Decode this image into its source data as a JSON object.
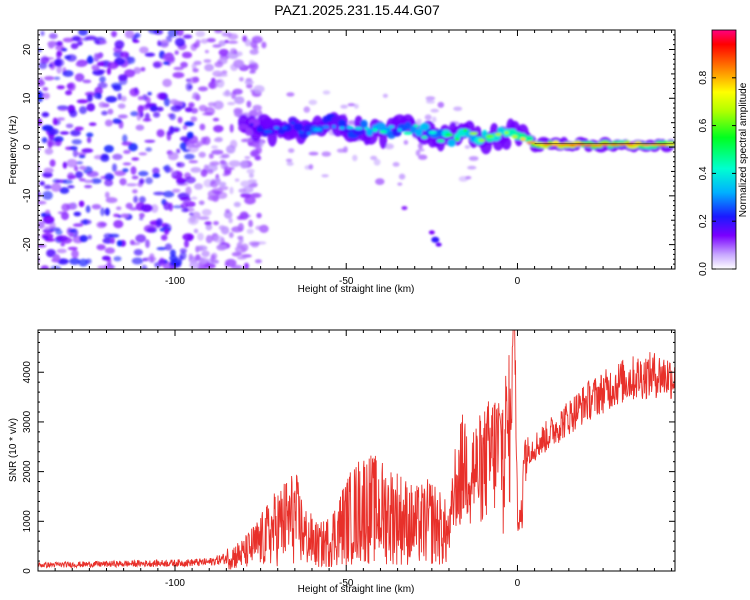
{
  "page_title": "PAZ1.2025.231.15.44.G07",
  "colors": {
    "snr_line": "#e8302a",
    "ridge": "#5a00ff",
    "background": "#ffffff",
    "axis": "#000000"
  },
  "chart_data": [
    {
      "type": "heatmap",
      "title": "PAZ1.2025.231.15.44.G07",
      "xlabel": "Height of straight line (km)",
      "ylabel": "Frequency (Hz)",
      "xlim": [
        -140,
        46
      ],
      "ylim": [
        -25,
        24
      ],
      "x_ticks": [
        -100,
        -50,
        0
      ],
      "y_ticks": [
        20,
        10,
        0,
        -10,
        -20
      ],
      "colorbar": {
        "label": "Normalized spectral amplitude",
        "range": [
          0,
          1
        ],
        "ticks": [
          "0.0",
          "0.2",
          "0.4",
          "0.6",
          "0.8"
        ],
        "tick_values": [
          0,
          0.2,
          0.4,
          0.6,
          0.8
        ]
      },
      "features": {
        "noise_region_x": [
          -140,
          -80
        ],
        "main_ridge": {
          "x_start": -82,
          "x_end": 46,
          "frequency_hz": 1.5,
          "peak_amplitude_near_x": [
            5,
            40
          ]
        },
        "secondary_feature": {
          "x": [
            -38,
            -20
          ],
          "frequency_hz": [
            -12,
            -20
          ]
        }
      },
      "ridge_points": [
        {
          "x": -80,
          "f": 3.5,
          "a": 0.15
        },
        {
          "x": -75,
          "f": 4.0,
          "a": 0.25
        },
        {
          "x": -70,
          "f": 3.0,
          "a": 0.3
        },
        {
          "x": -65,
          "f": 4.5,
          "a": 0.25
        },
        {
          "x": -60,
          "f": 3.0,
          "a": 0.35
        },
        {
          "x": -55,
          "f": 5.0,
          "a": 0.3
        },
        {
          "x": -50,
          "f": 4.0,
          "a": 0.35
        },
        {
          "x": -45,
          "f": 3.5,
          "a": 0.4
        },
        {
          "x": -40,
          "f": 3.0,
          "a": 0.45
        },
        {
          "x": -35,
          "f": 4.0,
          "a": 0.4
        },
        {
          "x": -30,
          "f": 3.5,
          "a": 0.5
        },
        {
          "x": -25,
          "f": 2.5,
          "a": 0.45
        },
        {
          "x": -20,
          "f": 2.0,
          "a": 0.55
        },
        {
          "x": -15,
          "f": 2.5,
          "a": 0.6
        },
        {
          "x": -10,
          "f": 1.5,
          "a": 0.65
        },
        {
          "x": -5,
          "f": 2.0,
          "a": 0.7
        },
        {
          "x": 0,
          "f": 3.0,
          "a": 0.7
        },
        {
          "x": 5,
          "f": 0.5,
          "a": 0.9
        },
        {
          "x": 15,
          "f": 0.5,
          "a": 0.95
        },
        {
          "x": 25,
          "f": 0.5,
          "a": 0.95
        },
        {
          "x": 35,
          "f": 0.5,
          "a": 0.9
        },
        {
          "x": 45,
          "f": 0.5,
          "a": 0.85
        }
      ]
    },
    {
      "type": "line",
      "xlabel": "Height of straight line (km)",
      "ylabel": "SNR (10 * v/v)",
      "xlim": [
        -140,
        46
      ],
      "ylim": [
        0,
        4850
      ],
      "x_ticks": [
        -100,
        -50,
        0
      ],
      "y_ticks": [
        0,
        1000,
        2000,
        3000,
        4000
      ],
      "series": [
        {
          "name": "SNR",
          "x": [
            -140,
            -130,
            -120,
            -110,
            -100,
            -95,
            -90,
            -85,
            -80,
            -75,
            -70,
            -65,
            -62,
            -58,
            -55,
            -50,
            -45,
            -40,
            -35,
            -30,
            -25,
            -20,
            -18,
            -15,
            -12,
            -10,
            -8,
            -5,
            -2,
            -1,
            0,
            1,
            2,
            5,
            10,
            15,
            20,
            25,
            30,
            35,
            40,
            46
          ],
          "y": [
            120,
            130,
            140,
            150,
            160,
            170,
            180,
            260,
            350,
            600,
            900,
            1100,
            700,
            500,
            600,
            1000,
            1300,
            1200,
            1100,
            900,
            1000,
            700,
            1800,
            2200,
            2000,
            2100,
            2300,
            2500,
            2900,
            4850,
            1800,
            2600,
            2400,
            2500,
            2800,
            3100,
            3400,
            3600,
            3800,
            3900,
            3950,
            3900
          ]
        }
      ]
    }
  ]
}
